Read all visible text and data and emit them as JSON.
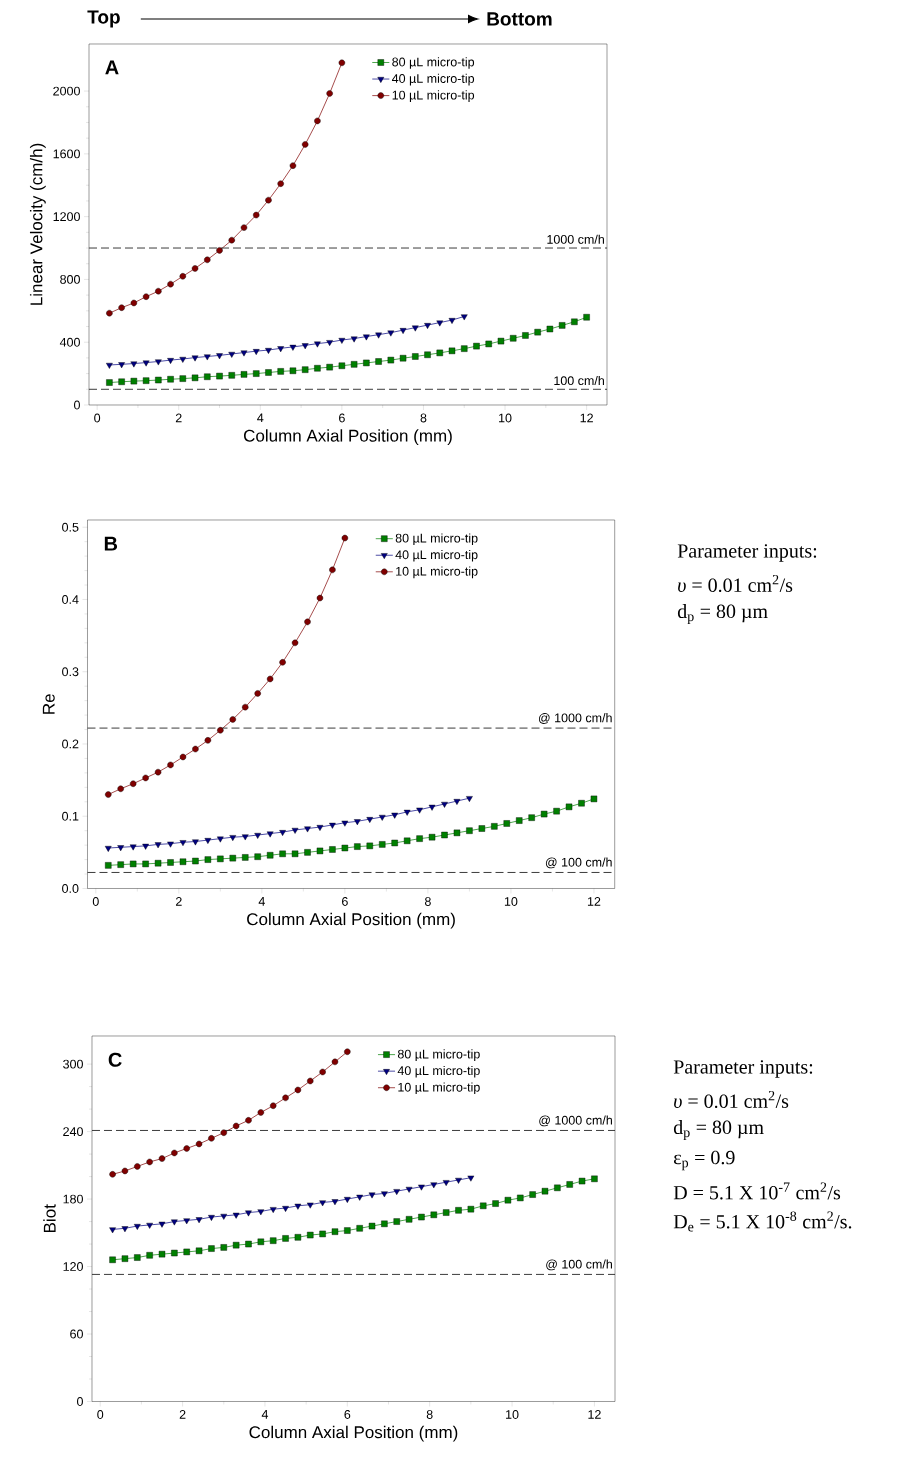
{
  "chart_data": [
    {
      "type": "line",
      "title": "A",
      "xlabel": "Column Axial Position (mm)",
      "ylabel": "Linear Velocity (cm/h)",
      "xlim": [
        -0.2,
        12.5
      ],
      "ylim": [
        0,
        2300
      ],
      "xticks": [
        0,
        2,
        4,
        6,
        8,
        10,
        12
      ],
      "yticks": [
        0,
        400,
        800,
        1200,
        1600,
        2000
      ],
      "legend": "top right",
      "annotations": [
        "Top",
        "Bottom"
      ],
      "ref_lines": [
        {
          "axis": "y",
          "value": 1000,
          "label": "1000 cm/h",
          "line_style": "dashed"
        },
        {
          "axis": "y",
          "value": 100,
          "label": "100 cm/h",
          "line_style": "dashed"
        }
      ],
      "series": [
        {
          "name": "80 µL micro-tip",
          "color": "#008000",
          "marker": "square",
          "x": [
            0.3,
            0.6,
            0.9,
            1.2,
            1.5,
            1.8,
            2.1,
            2.4,
            2.7,
            3.0,
            3.3,
            3.6,
            3.9,
            4.2,
            4.5,
            4.8,
            5.1,
            5.4,
            5.7,
            6.0,
            6.3,
            6.6,
            6.9,
            7.2,
            7.5,
            7.8,
            8.1,
            8.4,
            8.7,
            9.0,
            9.3,
            9.6,
            9.9,
            10.2,
            10.5,
            10.8,
            11.1,
            11.4,
            11.7,
            12.0
          ],
          "values": [
            143,
            148,
            152,
            155,
            159,
            164,
            168,
            173,
            180,
            184,
            189,
            195,
            200,
            207,
            214,
            218,
            225,
            234,
            241,
            250,
            259,
            268,
            277,
            286,
            298,
            309,
            320,
            332,
            345,
            359,
            375,
            389,
            407,
            425,
            443,
            464,
            484,
            507,
            530,
            559
          ]
        },
        {
          "name": "40 µL micro-tip",
          "color": "#000080",
          "marker": "triangle",
          "x": [
            0.3,
            0.6,
            0.9,
            1.2,
            1.5,
            1.8,
            2.1,
            2.4,
            2.7,
            3.0,
            3.3,
            3.6,
            3.9,
            4.2,
            4.5,
            4.8,
            5.1,
            5.4,
            5.7,
            6.0,
            6.3,
            6.6,
            6.9,
            7.2,
            7.5,
            7.8,
            8.1,
            8.4,
            8.7,
            9.0
          ],
          "values": [
            255,
            259,
            264,
            270,
            277,
            286,
            293,
            302,
            309,
            316,
            325,
            334,
            343,
            350,
            361,
            370,
            380,
            391,
            400,
            414,
            423,
            436,
            448,
            461,
            477,
            493,
            509,
            525,
            541,
            564
          ]
        },
        {
          "name": "10 µL micro-tip",
          "color": "#800000",
          "marker": "circle",
          "x": [
            0.3,
            0.6,
            0.9,
            1.2,
            1.5,
            1.8,
            2.1,
            2.4,
            2.7,
            3.0,
            3.3,
            3.6,
            3.9,
            4.2,
            4.5,
            4.8,
            5.1,
            5.4,
            5.7,
            6.0
          ],
          "values": [
            585,
            620,
            650,
            690,
            725,
            770,
            820,
            870,
            925,
            985,
            1050,
            1130,
            1210,
            1305,
            1410,
            1525,
            1660,
            1810,
            1985,
            2180
          ]
        }
      ]
    },
    {
      "type": "line",
      "title": "B",
      "xlabel": "Column Axial Position (mm)",
      "ylabel": "Re",
      "xlim": [
        -0.2,
        12.5
      ],
      "ylim": [
        0,
        0.51
      ],
      "xticks": [
        0,
        2,
        4,
        6,
        8,
        10,
        12
      ],
      "yticks": [
        {
          "value": 0,
          "label": "0.0"
        },
        0.1,
        0.2,
        0.3,
        0.4,
        0.5
      ],
      "legend": "top right",
      "annotations": [
        "Parameter inputs:",
        "*υ* = 0.01 cm$^{2}$/s",
        "d$_{p}$ = 80 µm"
      ],
      "ref_lines": [
        {
          "axis": "y",
          "value": 0.222,
          "label": "@ 1000 cm/h",
          "line_style": "dashed"
        },
        {
          "axis": "y",
          "value": 0.0222,
          "label": "@ 100 cm/h",
          "line_style": "dashed"
        }
      ],
      "series": [
        {
          "name": "80 µL micro-tip",
          "color": "#008000",
          "marker": "square",
          "x": [
            0.3,
            0.6,
            0.9,
            1.2,
            1.5,
            1.8,
            2.1,
            2.4,
            2.7,
            3.0,
            3.3,
            3.6,
            3.9,
            4.2,
            4.5,
            4.8,
            5.1,
            5.4,
            5.7,
            6.0,
            6.3,
            6.6,
            6.9,
            7.2,
            7.5,
            7.8,
            8.1,
            8.4,
            8.7,
            9.0,
            9.3,
            9.6,
            9.9,
            10.2,
            10.5,
            10.8,
            11.1,
            11.4,
            11.7,
            12.0
          ],
          "values": [
            0.032,
            0.033,
            0.034,
            0.034,
            0.035,
            0.036,
            0.037,
            0.038,
            0.04,
            0.041,
            0.042,
            0.043,
            0.044,
            0.046,
            0.048,
            0.048,
            0.05,
            0.052,
            0.054,
            0.056,
            0.058,
            0.059,
            0.061,
            0.063,
            0.066,
            0.069,
            0.071,
            0.074,
            0.077,
            0.08,
            0.083,
            0.086,
            0.09,
            0.094,
            0.098,
            0.103,
            0.107,
            0.113,
            0.118,
            0.124
          ]
        },
        {
          "name": "40 µL micro-tip",
          "color": "#000080",
          "marker": "triangle",
          "x": [
            0.3,
            0.6,
            0.9,
            1.2,
            1.5,
            1.8,
            2.1,
            2.4,
            2.7,
            3.0,
            3.3,
            3.6,
            3.9,
            4.2,
            4.5,
            4.8,
            5.1,
            5.4,
            5.7,
            6.0,
            6.3,
            6.6,
            6.9,
            7.2,
            7.5,
            7.8,
            8.1,
            8.4,
            8.7,
            9.0
          ],
          "values": [
            0.056,
            0.057,
            0.058,
            0.059,
            0.061,
            0.062,
            0.064,
            0.065,
            0.067,
            0.069,
            0.071,
            0.072,
            0.074,
            0.076,
            0.078,
            0.081,
            0.083,
            0.085,
            0.088,
            0.091,
            0.093,
            0.096,
            0.099,
            0.102,
            0.106,
            0.109,
            0.113,
            0.117,
            0.121,
            0.125
          ]
        },
        {
          "name": "10 µL micro-tip",
          "color": "#800000",
          "marker": "circle",
          "x": [
            0.3,
            0.6,
            0.9,
            1.2,
            1.5,
            1.8,
            2.1,
            2.4,
            2.7,
            3.0,
            3.3,
            3.6,
            3.9,
            4.2,
            4.5,
            4.8,
            5.1,
            5.4,
            5.7,
            6.0
          ],
          "values": [
            0.13,
            0.138,
            0.145,
            0.153,
            0.161,
            0.171,
            0.182,
            0.193,
            0.205,
            0.219,
            0.234,
            0.251,
            0.27,
            0.29,
            0.313,
            0.34,
            0.369,
            0.402,
            0.441,
            0.485
          ]
        }
      ]
    },
    {
      "type": "line",
      "title": "C",
      "xlabel": "Column Axial Position (mm)",
      "ylabel": "Biot",
      "xlim": [
        -0.2,
        12.5
      ],
      "ylim": [
        0,
        325
      ],
      "xticks": [
        0,
        2,
        4,
        6,
        8,
        10,
        12
      ],
      "yticks": [
        0,
        60,
        120,
        180,
        240,
        300
      ],
      "legend": "top right",
      "annotations": [
        "Parameter inputs:",
        "*υ* = 0.01 cm$^{2}$/s",
        "d$_{p}$ = 80 µm",
        "ε$_{p}$ = 0.9",
        "D =  5.1 X 10$^{-7}$ cm$^{2}$/s",
        "D$_{e}$ = 5.1 X 10$^{-8}$ cm$^{2}$/s."
      ],
      "ref_lines": [
        {
          "axis": "y",
          "value": 241,
          "label": "@ 1000 cm/h",
          "line_style": "dashed"
        },
        {
          "axis": "y",
          "value": 113,
          "label": "@ 100 cm/h",
          "line_style": "dashed"
        }
      ],
      "series": [
        {
          "name": "80 µL micro-tip",
          "color": "#008000",
          "marker": "square",
          "x": [
            0.3,
            0.6,
            0.9,
            1.2,
            1.5,
            1.8,
            2.1,
            2.4,
            2.7,
            3.0,
            3.3,
            3.6,
            3.9,
            4.2,
            4.5,
            4.8,
            5.1,
            5.4,
            5.7,
            6.0,
            6.3,
            6.6,
            6.9,
            7.2,
            7.5,
            7.8,
            8.1,
            8.4,
            8.7,
            9.0,
            9.3,
            9.6,
            9.9,
            10.2,
            10.5,
            10.8,
            11.1,
            11.4,
            11.7,
            12.0
          ],
          "values": [
            126,
            127,
            128,
            130,
            131,
            132,
            133,
            134,
            136,
            137,
            139,
            140,
            142,
            143,
            145,
            146,
            148,
            149,
            151,
            152,
            154,
            156,
            158,
            160,
            162,
            164,
            166,
            168,
            170,
            171,
            174,
            176,
            179,
            181,
            184,
            187,
            190,
            193,
            196,
            198
          ]
        },
        {
          "name": "40 µL micro-tip",
          "color": "#000080",
          "marker": "triangle",
          "x": [
            0.3,
            0.6,
            0.9,
            1.2,
            1.5,
            1.8,
            2.1,
            2.4,
            2.7,
            3.0,
            3.3,
            3.6,
            3.9,
            4.2,
            4.5,
            4.8,
            5.1,
            5.4,
            5.7,
            6.0,
            6.3,
            6.6,
            6.9,
            7.2,
            7.5,
            7.8,
            8.1,
            8.4,
            8.7,
            9.0
          ],
          "values": [
            153,
            154,
            156,
            157,
            158,
            160,
            161,
            162,
            164,
            165,
            166,
            168,
            169,
            171,
            172,
            174,
            175,
            177,
            178,
            180,
            182,
            184,
            185,
            187,
            189,
            191,
            193,
            195,
            197,
            199
          ]
        },
        {
          "name": "10 µL micro-tip",
          "color": "#800000",
          "marker": "circle",
          "x": [
            0.3,
            0.6,
            0.9,
            1.2,
            1.5,
            1.8,
            2.1,
            2.4,
            2.7,
            3.0,
            3.3,
            3.6,
            3.9,
            4.2,
            4.5,
            4.8,
            5.1,
            5.4,
            5.7,
            6.0
          ],
          "values": [
            202,
            205,
            209,
            213,
            216,
            221,
            225,
            229,
            234,
            239,
            245,
            250,
            257,
            263,
            270,
            277,
            285,
            293,
            302,
            311
          ]
        }
      ]
    }
  ]
}
